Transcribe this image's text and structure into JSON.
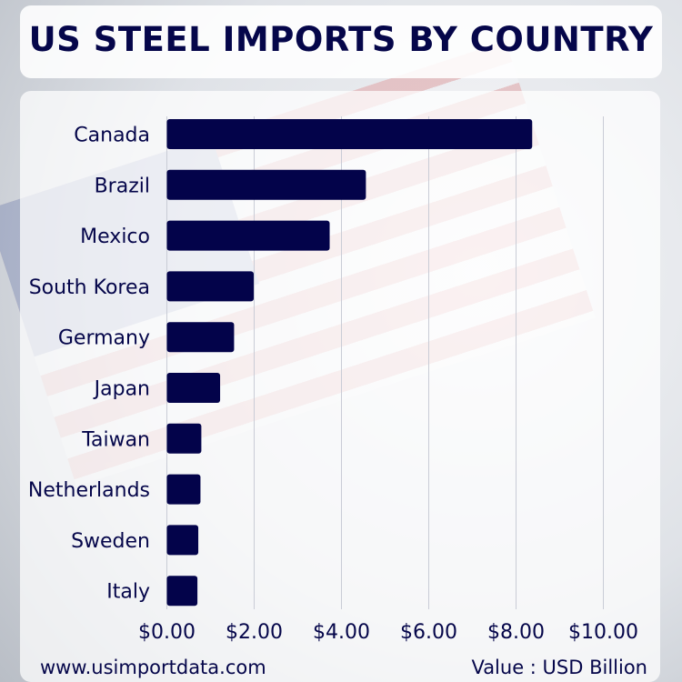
{
  "chart_data": {
    "type": "bar",
    "orientation": "horizontal",
    "title": "US STEEL IMPORTS BY COUNTRY",
    "categories": [
      "Canada",
      "Brazil",
      "Mexico",
      "South Korea",
      "Germany",
      "Japan",
      "Taiwan",
      "Netherlands",
      "Sweden",
      "Italy"
    ],
    "values": [
      8.37,
      4.56,
      3.73,
      1.99,
      1.54,
      1.22,
      0.79,
      0.77,
      0.72,
      0.7
    ],
    "xlim": [
      0,
      10
    ],
    "xticks": [
      "$0.00",
      "$2.00",
      "$4.00",
      "$6.00",
      "$8.00",
      "$10.00"
    ],
    "grid": true,
    "bar_color": "#03034a",
    "unit_label": "Value : USD Billion"
  },
  "footer": {
    "website": "www.usimportdata.com",
    "unit": "Value : USD Billion"
  }
}
